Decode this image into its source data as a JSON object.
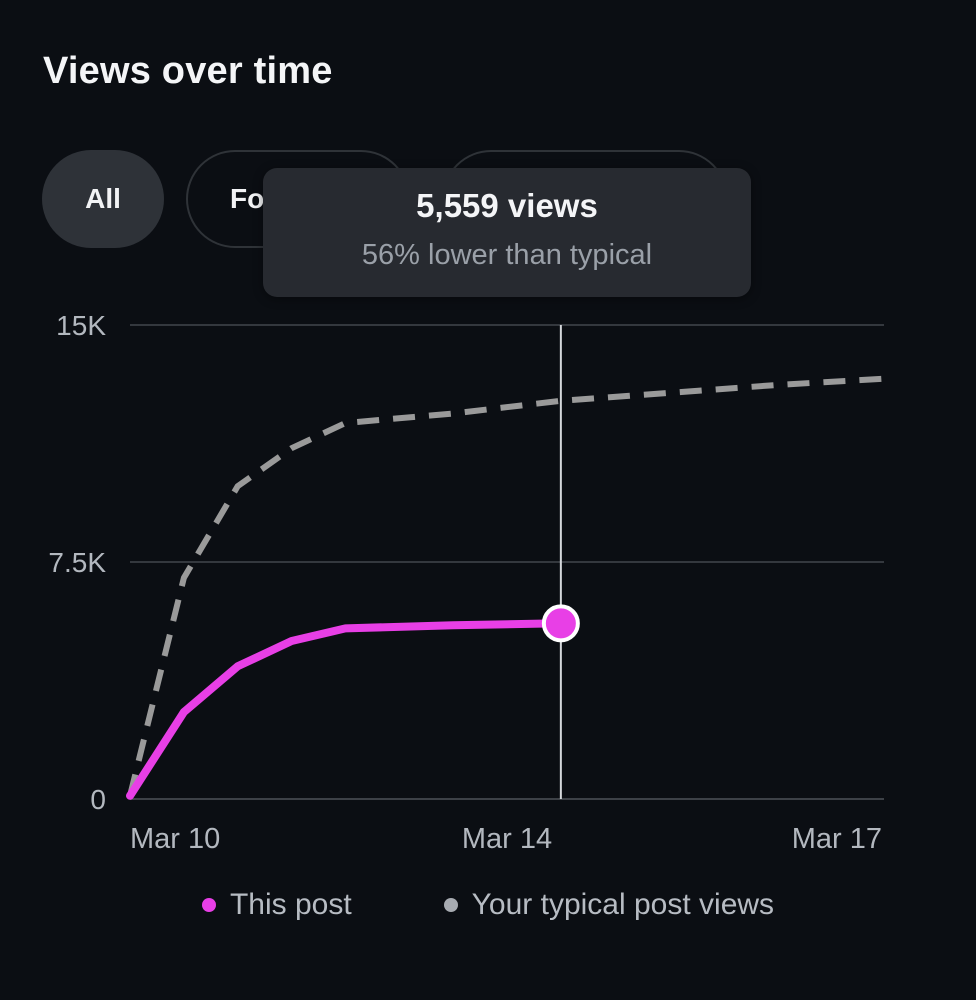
{
  "header": {
    "title": "Views over time"
  },
  "filters": [
    {
      "label": "All",
      "selected": true
    },
    {
      "label": "Fo",
      "selected": false
    },
    {
      "label": "",
      "selected": false
    }
  ],
  "tooltip": {
    "value": "5,559 views",
    "comparison": "56% lower than typical"
  },
  "colors": {
    "this_post": "#e83fe6",
    "typical": "#9a9a9a"
  },
  "chart_data": {
    "type": "line",
    "title": "Views over time",
    "xlabel": "",
    "ylabel": "",
    "x_ticks": [
      "Mar 10",
      "Mar 14",
      "Mar 17"
    ],
    "y_ticks": [
      "0",
      "7.5K",
      "15K"
    ],
    "x_range_days": [
      "Mar 10",
      "Mar 17"
    ],
    "ylim": [
      0,
      15000
    ],
    "grid": "horizontal",
    "legend_position": "bottom",
    "series": [
      {
        "name": "This post",
        "style": "solid",
        "x": [
          "Mar 10",
          "Mar 10.5",
          "Mar 11",
          "Mar 11.5",
          "Mar 12",
          "Mar 13",
          "Mar 14"
        ],
        "values": [
          100,
          2750,
          4200,
          5000,
          5400,
          5500,
          5559
        ]
      },
      {
        "name": "Your typical post views",
        "style": "dashed",
        "x": [
          "Mar 10",
          "Mar 10.5",
          "Mar 11",
          "Mar 11.5",
          "Mar 12",
          "Mar 13",
          "Mar 14",
          "Mar 15",
          "Mar 16",
          "Mar 17"
        ],
        "values": [
          100,
          7000,
          9900,
          11100,
          11900,
          12200,
          12600,
          12850,
          13100,
          13300
        ]
      }
    ],
    "highlight": {
      "x": "Mar 14",
      "value": 5559
    }
  }
}
